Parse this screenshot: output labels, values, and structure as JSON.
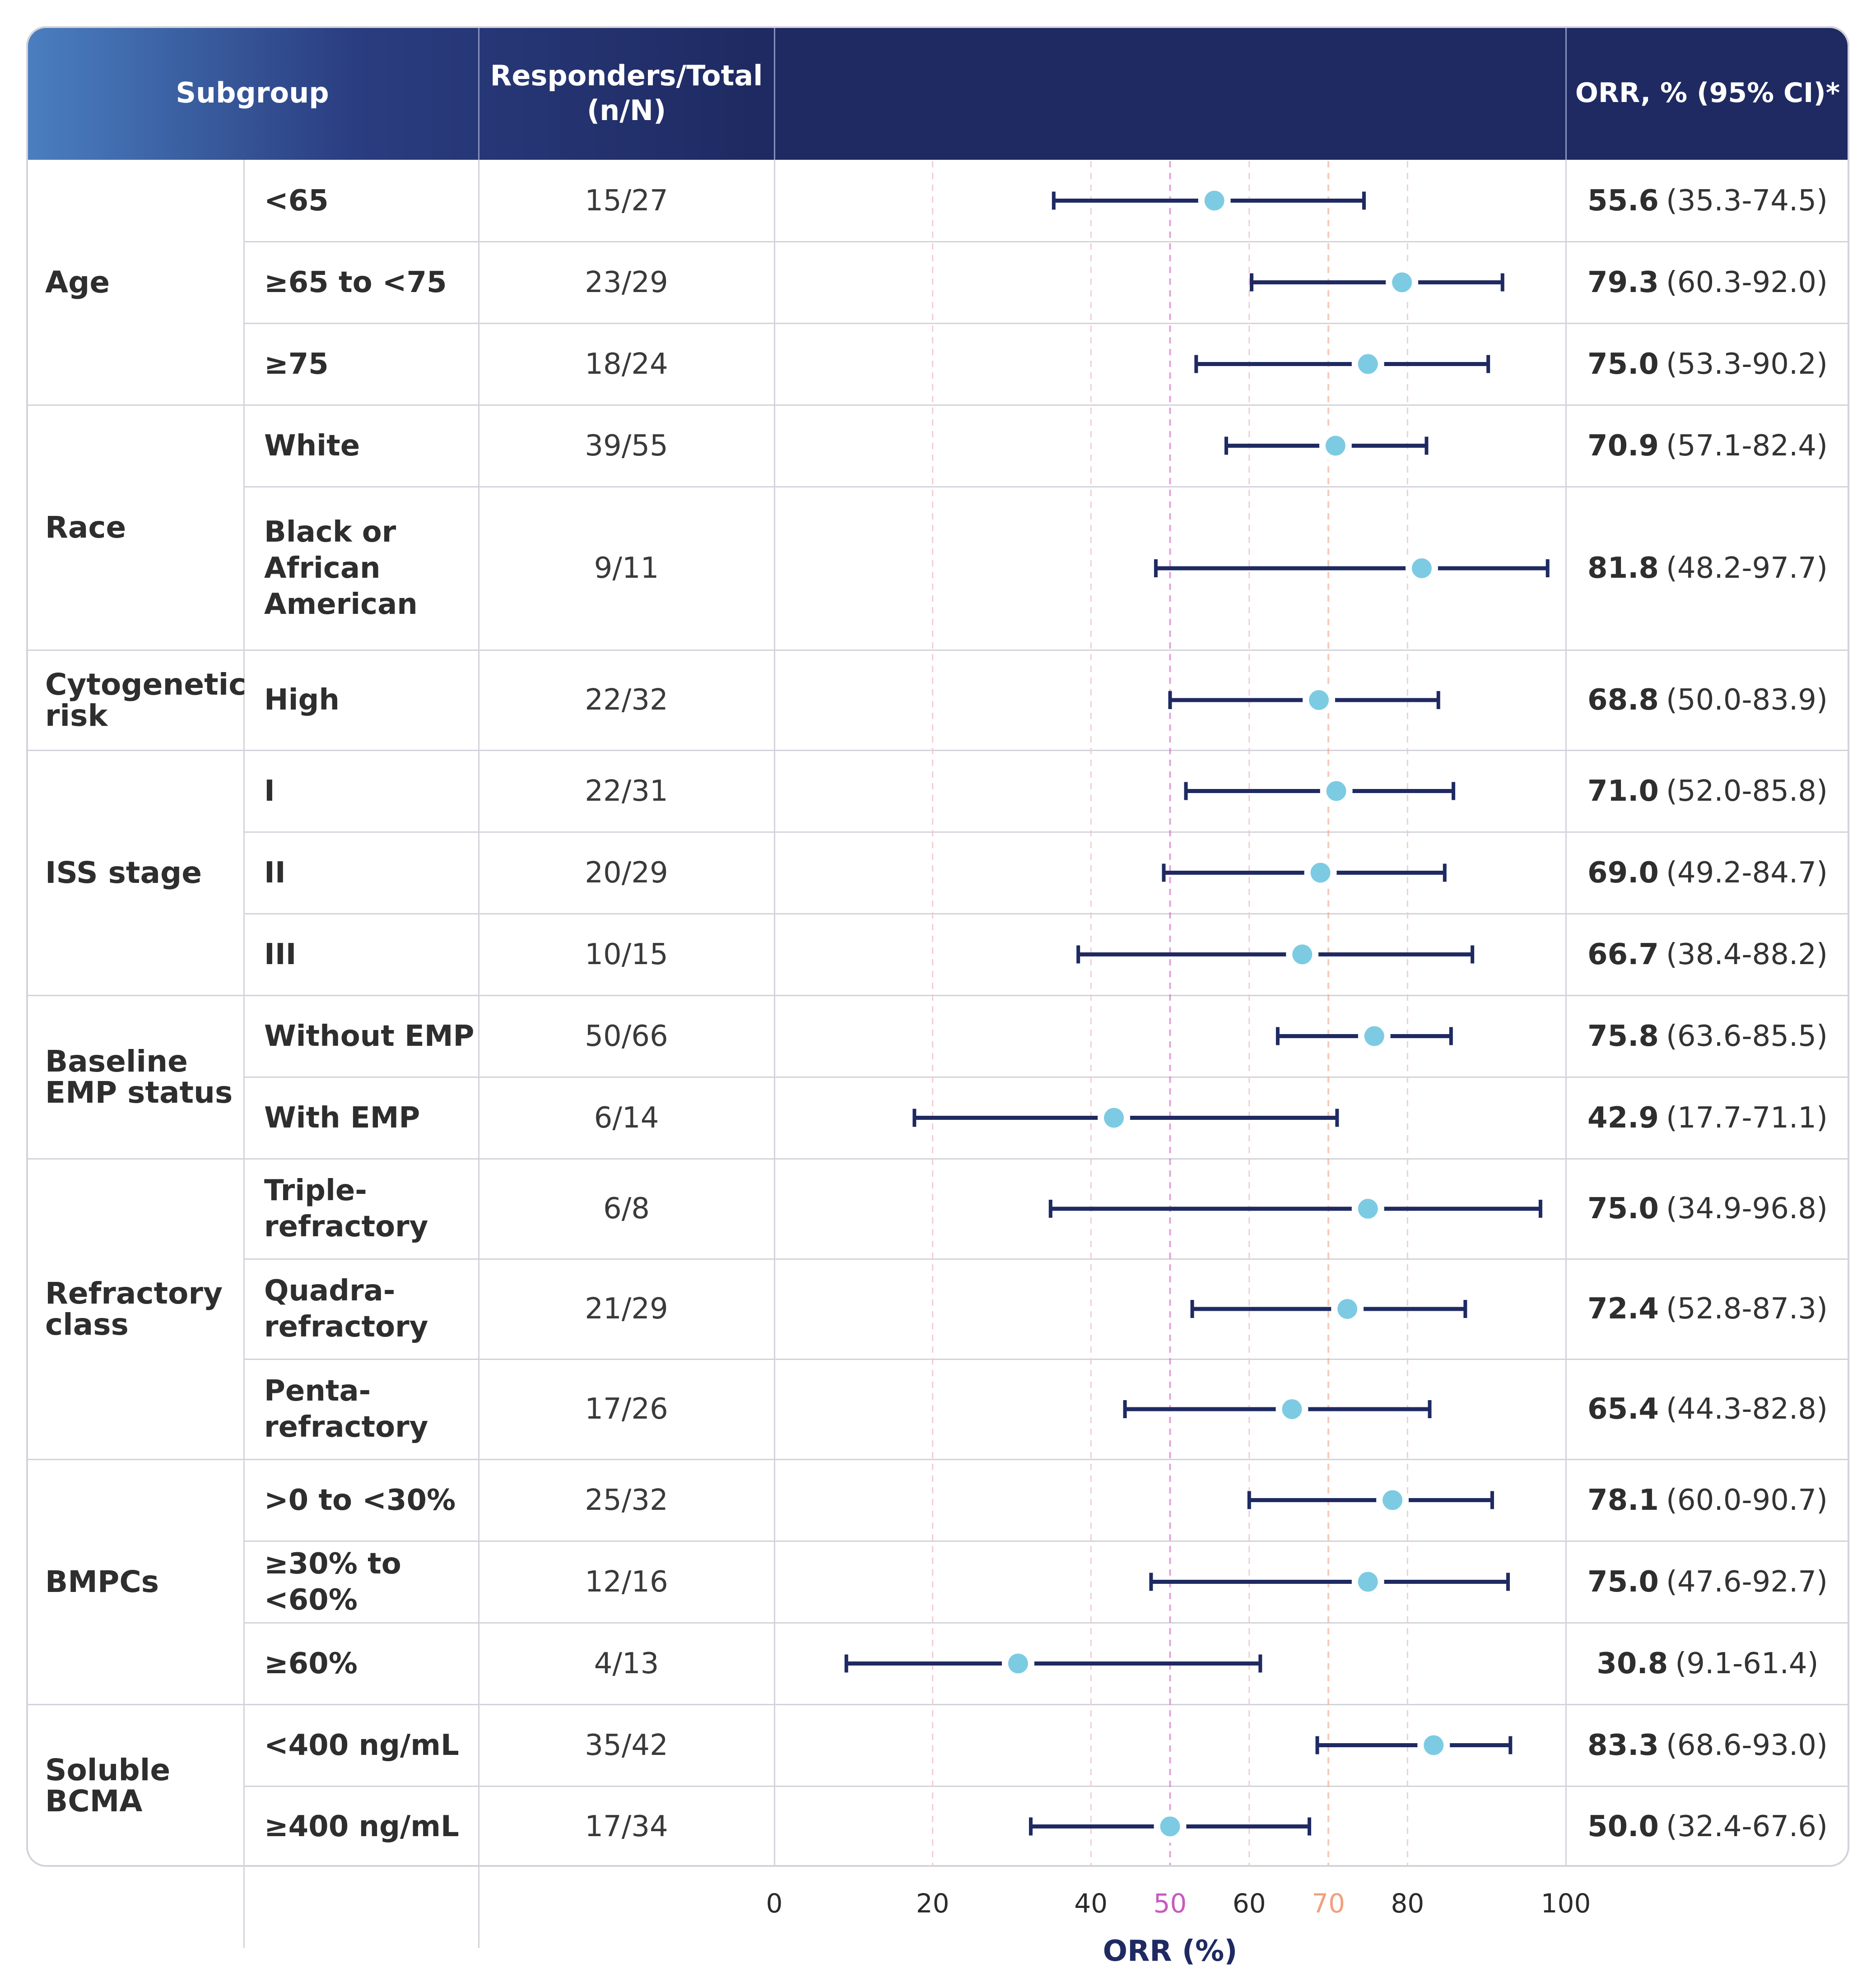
{
  "header": {
    "subgroup": "Subgroup",
    "responders_line1": "Responders/Total",
    "responders_line2": "(n/N)",
    "orr": "ORR, % (95% CI)*"
  },
  "groups": [
    {
      "label_lines": [
        "Age"
      ]
    },
    {
      "label_lines": [
        "Race"
      ]
    },
    {
      "label_lines": [
        "Cytogenetic",
        "risk"
      ]
    },
    {
      "label_lines": [
        "ISS stage"
      ]
    },
    {
      "label_lines": [
        "Baseline",
        "EMP status"
      ]
    },
    {
      "label_lines": [
        "Refractory",
        "class"
      ]
    },
    {
      "label_lines": [
        "BMPCs"
      ]
    },
    {
      "label_lines": [
        "Soluble",
        "BCMA"
      ]
    }
  ],
  "rows": [
    {
      "sub_lines": [
        "<65"
      ],
      "resp": "15/27",
      "orr": "55.6",
      "ci": "(35.3-74.5)"
    },
    {
      "sub_lines": [
        "≥65 to <75"
      ],
      "resp": "23/29",
      "orr": "79.3",
      "ci": "(60.3-92.0)"
    },
    {
      "sub_lines": [
        "≥75"
      ],
      "resp": "18/24",
      "orr": "75.0",
      "ci": "(53.3-90.2)"
    },
    {
      "sub_lines": [
        "White"
      ],
      "resp": "39/55",
      "orr": "70.9",
      "ci": "(57.1-82.4)"
    },
    {
      "sub_lines": [
        "Black or",
        "African",
        "American"
      ],
      "resp": "9/11",
      "orr": "81.8",
      "ci": "(48.2-97.7)"
    },
    {
      "sub_lines": [
        "High"
      ],
      "resp": "22/32",
      "orr": "68.8",
      "ci": "(50.0-83.9)"
    },
    {
      "sub_lines": [
        "I"
      ],
      "resp": "22/31",
      "orr": "71.0",
      "ci": "(52.0-85.8)"
    },
    {
      "sub_lines": [
        "II"
      ],
      "resp": "20/29",
      "orr": "69.0",
      "ci": "(49.2-84.7)"
    },
    {
      "sub_lines": [
        "III"
      ],
      "resp": "10/15",
      "orr": "66.7",
      "ci": "(38.4-88.2)"
    },
    {
      "sub_lines": [
        "Without EMP"
      ],
      "resp": "50/66",
      "orr": "75.8",
      "ci": "(63.6-85.5)"
    },
    {
      "sub_lines": [
        "With EMP"
      ],
      "resp": "6/14",
      "orr": "42.9",
      "ci": "(17.7-71.1)"
    },
    {
      "sub_lines": [
        "Triple-",
        "refractory"
      ],
      "resp": "6/8",
      "orr": "75.0",
      "ci": "(34.9-96.8)"
    },
    {
      "sub_lines": [
        "Quadra-",
        "refractory"
      ],
      "resp": "21/29",
      "orr": "72.4",
      "ci": "(52.8-87.3)"
    },
    {
      "sub_lines": [
        "Penta-",
        "refractory"
      ],
      "resp": "17/26",
      "orr": "65.4",
      "ci": "(44.3-82.8)"
    },
    {
      "sub_lines": [
        ">0 to <30%"
      ],
      "resp": "25/32",
      "orr": "78.1",
      "ci": "(60.0-90.7)"
    },
    {
      "sub_lines": [
        "≥30% to <60%"
      ],
      "resp": "12/16",
      "orr": "75.0",
      "ci": "(47.6-92.7)"
    },
    {
      "sub_lines": [
        "≥60%"
      ],
      "resp": "4/13",
      "orr": "30.8",
      "ci": "(9.1-61.4)"
    },
    {
      "sub_lines": [
        "<400 ng/mL"
      ],
      "resp": "35/42",
      "orr": "83.3",
      "ci": "(68.6-93.0)"
    },
    {
      "sub_lines": [
        "≥400 ng/mL"
      ],
      "resp": "17/34",
      "orr": "50.0",
      "ci": "(32.4-67.6)"
    }
  ],
  "colors": {
    "header_dark": "#1f2a62",
    "header_light": "#4a7fc0",
    "ci_line": "#1f2a62",
    "point": "#7ccbe3",
    "ref_50": "#c75bbf",
    "ref_70": "#f0a07e",
    "grid": "#d3d3db"
  },
  "chart_data": {
    "type": "forest",
    "xlabel": "ORR (%)",
    "xlim": [
      0,
      100
    ],
    "xticks": [
      0,
      20,
      40,
      50,
      60,
      70,
      80,
      100
    ],
    "reference_lines": [
      50,
      70
    ],
    "grid": true,
    "points": [
      {
        "subgroup": "Age",
        "level": "<65",
        "value": 55.6,
        "low": 35.3,
        "high": 74.5
      },
      {
        "subgroup": "Age",
        "level": "≥65 to <75",
        "value": 79.3,
        "low": 60.3,
        "high": 92.0
      },
      {
        "subgroup": "Age",
        "level": "≥75",
        "value": 75.0,
        "low": 53.3,
        "high": 90.2
      },
      {
        "subgroup": "Race",
        "level": "White",
        "value": 70.9,
        "low": 57.1,
        "high": 82.4
      },
      {
        "subgroup": "Race",
        "level": "Black or African American",
        "value": 81.8,
        "low": 48.2,
        "high": 97.7
      },
      {
        "subgroup": "Cytogenetic risk",
        "level": "High",
        "value": 68.8,
        "low": 50.0,
        "high": 83.9
      },
      {
        "subgroup": "ISS stage",
        "level": "I",
        "value": 71.0,
        "low": 52.0,
        "high": 85.8
      },
      {
        "subgroup": "ISS stage",
        "level": "II",
        "value": 69.0,
        "low": 49.2,
        "high": 84.7
      },
      {
        "subgroup": "ISS stage",
        "level": "III",
        "value": 66.7,
        "low": 38.4,
        "high": 88.2
      },
      {
        "subgroup": "Baseline EMP status",
        "level": "Without EMP",
        "value": 75.8,
        "low": 63.6,
        "high": 85.5
      },
      {
        "subgroup": "Baseline EMP status",
        "level": "With EMP",
        "value": 42.9,
        "low": 17.7,
        "high": 71.1
      },
      {
        "subgroup": "Refractory class",
        "level": "Triple-refractory",
        "value": 75.0,
        "low": 34.9,
        "high": 96.8
      },
      {
        "subgroup": "Refractory class",
        "level": "Quadra-refractory",
        "value": 72.4,
        "low": 52.8,
        "high": 87.3
      },
      {
        "subgroup": "Refractory class",
        "level": "Penta-refractory",
        "value": 65.4,
        "low": 44.3,
        "high": 82.8
      },
      {
        "subgroup": "BMPCs",
        "level": ">0 to <30%",
        "value": 78.1,
        "low": 60.0,
        "high": 90.7
      },
      {
        "subgroup": "BMPCs",
        "level": "≥30% to <60%",
        "value": 75.0,
        "low": 47.6,
        "high": 92.7
      },
      {
        "subgroup": "BMPCs",
        "level": "≥60%",
        "value": 30.8,
        "low": 9.1,
        "high": 61.4
      },
      {
        "subgroup": "Soluble BCMA",
        "level": "<400 ng/mL",
        "value": 83.3,
        "low": 68.6,
        "high": 93.0
      },
      {
        "subgroup": "Soluble BCMA",
        "level": "≥400 ng/mL",
        "value": 50.0,
        "low": 32.4,
        "high": 67.6
      }
    ]
  }
}
